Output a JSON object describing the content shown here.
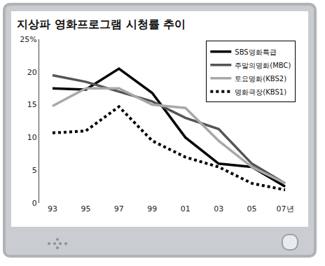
{
  "chart_data": {
    "type": "line",
    "title": "지상파 영화프로그램 시청률 추이",
    "categories": [
      "93",
      "95",
      "97",
      "99",
      "01",
      "03",
      "05",
      "07년"
    ],
    "series": [
      {
        "name": "SBS영화특급",
        "color": "#000000",
        "line_style": "solid",
        "values": [
          17.5,
          17.3,
          20.5,
          16.8,
          10,
          6,
          5.5,
          2.5
        ]
      },
      {
        "name": "주말의명화(MBC)",
        "color": "#555555",
        "line_style": "solid",
        "values": [
          19.5,
          18.5,
          17,
          15.5,
          13,
          11.3,
          6,
          3
        ]
      },
      {
        "name": "토요명화(KBS2)",
        "color": "#a8a8a8",
        "line_style": "solid",
        "values": [
          14.8,
          17.5,
          17.5,
          15,
          14.5,
          9.5,
          5.5,
          3
        ]
      },
      {
        "name": "명화극장(KBS1)",
        "color": "#000000",
        "line_style": "dotted",
        "values": [
          10.7,
          11,
          14.7,
          9.5,
          7,
          5.5,
          3,
          2
        ]
      }
    ],
    "ylim": [
      0,
      25
    ],
    "yticks": [
      0,
      5,
      10,
      15,
      20,
      {
        "value": 25,
        "label": "25%"
      }
    ],
    "grid": false,
    "legend": "upper right"
  }
}
